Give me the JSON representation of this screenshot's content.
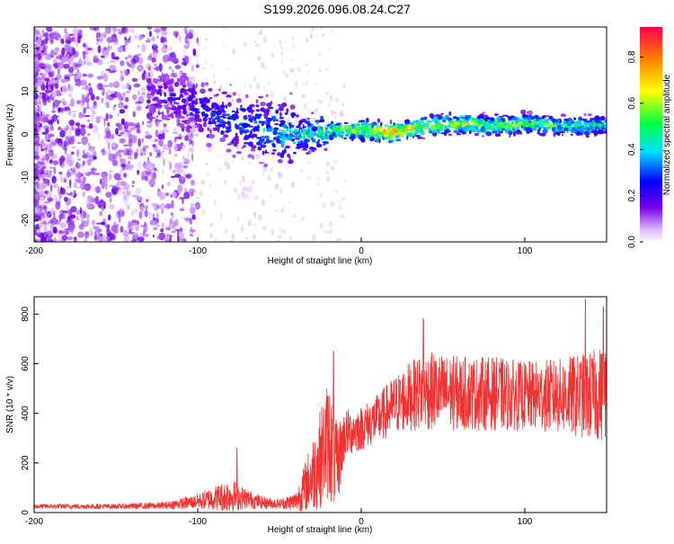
{
  "title": "S199.2026.096.08.24.C27",
  "chart_data": [
    {
      "type": "heatmap",
      "id": "spectrogram",
      "xlabel": "Height of straight line (km)",
      "ylabel": "Frequency (Hz)",
      "xlim": [
        -200,
        150
      ],
      "ylim": [
        -25,
        25
      ],
      "xticks": [
        "-200",
        "-100",
        "0",
        "100"
      ],
      "xtick_values": [
        -200,
        -100,
        0,
        100
      ],
      "yticks": [
        "-20",
        "-10",
        "0",
        "10",
        "20"
      ],
      "ytick_values": [
        -20,
        -10,
        0,
        10,
        20
      ],
      "ridge": {
        "x": [
          -130,
          -110,
          -100,
          -80,
          -60,
          -40,
          -30,
          -20,
          0,
          20,
          40,
          60,
          80,
          100,
          120,
          150
        ],
        "freq": [
          10,
          8,
          6,
          3,
          1,
          0,
          0,
          1,
          1,
          0.5,
          2,
          2.5,
          2,
          2.5,
          2,
          2
        ],
        "amplitude": [
          0.2,
          0.25,
          0.3,
          0.35,
          0.4,
          0.5,
          0.55,
          0.65,
          0.75,
          0.95,
          0.7,
          0.75,
          0.7,
          0.65,
          0.6,
          0.5
        ]
      },
      "colorbar": {
        "label": "Normalized spectral amplitude",
        "range": [
          0,
          0.93
        ],
        "ticks": [
          "0.0",
          "0.2",
          "0.4",
          "0.6",
          "0.8"
        ],
        "tick_values": [
          0,
          0.2,
          0.4,
          0.6,
          0.8
        ]
      }
    },
    {
      "type": "line",
      "id": "snr",
      "xlabel": "Height of straight line (km)",
      "ylabel": "SNR (10 * v/v)",
      "xlim": [
        -200,
        150
      ],
      "ylim": [
        0,
        870
      ],
      "xticks": [
        "-200",
        "-100",
        "0",
        "100"
      ],
      "xtick_values": [
        -200,
        -100,
        0,
        100
      ],
      "yticks": [
        "0",
        "200",
        "400",
        "600",
        "800"
      ],
      "ytick_values": [
        0,
        200,
        400,
        600,
        800
      ],
      "color": "#ee3333",
      "envelope": {
        "x": [
          -200,
          -150,
          -120,
          -100,
          -80,
          -70,
          -60,
          -50,
          -40,
          -30,
          -25,
          -20,
          -15,
          -10,
          0,
          10,
          20,
          30,
          40,
          60,
          80,
          100,
          120,
          140,
          150
        ],
        "mean": [
          25,
          25,
          28,
          45,
          70,
          55,
          40,
          35,
          45,
          150,
          220,
          300,
          180,
          320,
          340,
          380,
          430,
          470,
          490,
          480,
          480,
          470,
          470,
          470,
          480
        ],
        "spread": [
          10,
          10,
          15,
          30,
          70,
          40,
          25,
          20,
          40,
          150,
          200,
          250,
          180,
          100,
          90,
          100,
          120,
          140,
          160,
          150,
          150,
          140,
          150,
          180,
          200
        ]
      },
      "spikes": [
        {
          "x": -76,
          "y": 260
        },
        {
          "x": -17,
          "y": 650
        },
        {
          "x": 38,
          "y": 780
        },
        {
          "x": 137,
          "y": 860
        },
        {
          "x": 148,
          "y": 830
        }
      ]
    }
  ]
}
